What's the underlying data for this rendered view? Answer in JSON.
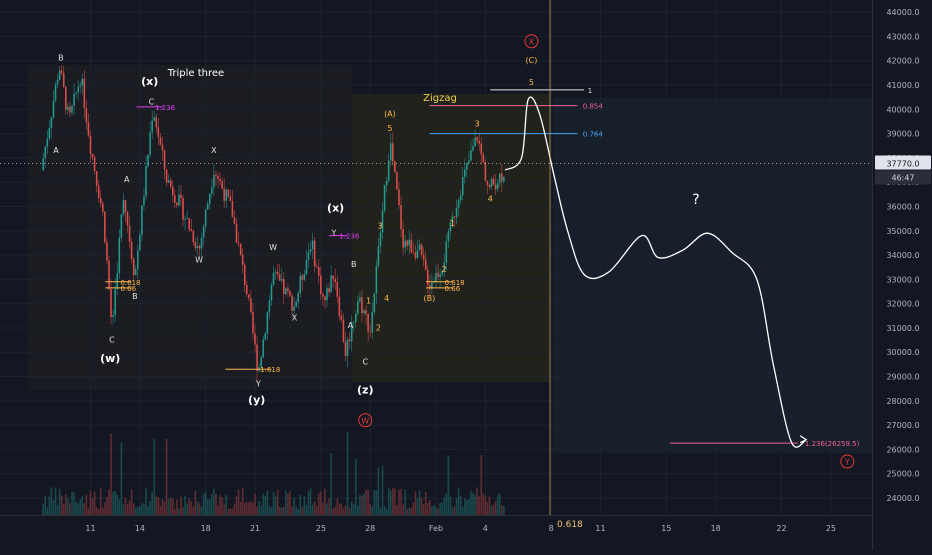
{
  "chart_data": {
    "type": "candlestick",
    "title": "",
    "price_axis": {
      "ticks": [
        "44000.0",
        "43000.0",
        "42000.0",
        "41000.0",
        "40000.0",
        "39000.0",
        "38000.0",
        "37000.0",
        "36000.0",
        "35000.0",
        "34000.0",
        "33000.0",
        "32000.0",
        "31000.0",
        "30000.0",
        "29000.0",
        "28000.0",
        "27000.0",
        "26000.0",
        "25000.0",
        "24000.0"
      ],
      "tick_values": [
        44000,
        43000,
        42000,
        41000,
        40000,
        39000,
        38000,
        37000,
        36000,
        35000,
        34000,
        33000,
        32000,
        31000,
        30000,
        29000,
        28000,
        27000,
        26000,
        25000,
        24000
      ],
      "current_price": "37770.0",
      "countdown": "46:47",
      "ylim": [
        23300,
        44500
      ]
    },
    "time_axis": {
      "labels": [
        "11",
        "14",
        "18",
        "21",
        "25",
        "28",
        "Feb",
        "4",
        "8",
        "11",
        "15",
        "18",
        "22",
        "25"
      ],
      "label_days": [
        3,
        6,
        10,
        13,
        17,
        20,
        24,
        27,
        31,
        34,
        38,
        41,
        45,
        48
      ],
      "xlim": [
        -2.5,
        50.5
      ],
      "footer_left": "0.618",
      "footer_right": "1"
    },
    "regions": {
      "triple_three": "Triple three",
      "zigzag": "Zigzag",
      "forecast_question": "?"
    },
    "price_path": [
      {
        "d": 0,
        "p": 37500
      },
      {
        "d": 0.6,
        "p": 39800
      },
      {
        "d": 1.1,
        "p": 41800
      },
      {
        "d": 1.7,
        "p": 39500
      },
      {
        "d": 2.4,
        "p": 41400
      },
      {
        "d": 3.0,
        "p": 38500
      },
      {
        "d": 3.8,
        "p": 35500
      },
      {
        "d": 4.3,
        "p": 31000
      },
      {
        "d": 5.0,
        "p": 36500
      },
      {
        "d": 5.7,
        "p": 33100
      },
      {
        "d": 6.8,
        "p": 40100
      },
      {
        "d": 7.6,
        "p": 37200
      },
      {
        "d": 8.5,
        "p": 36000
      },
      {
        "d": 9.6,
        "p": 34200
      },
      {
        "d": 10.5,
        "p": 37600
      },
      {
        "d": 11.6,
        "p": 35800
      },
      {
        "d": 12.5,
        "p": 32500
      },
      {
        "d": 13.2,
        "p": 29200
      },
      {
        "d": 14.1,
        "p": 33200
      },
      {
        "d": 15.4,
        "p": 31900
      },
      {
        "d": 16.4,
        "p": 34600
      },
      {
        "d": 17.2,
        "p": 32000
      },
      {
        "d": 17.8,
        "p": 33400
      },
      {
        "d": 18.5,
        "p": 30000
      },
      {
        "d": 19.3,
        "p": 32300
      },
      {
        "d": 20.0,
        "p": 30900
      },
      {
        "d": 20.6,
        "p": 34800
      },
      {
        "d": 21.2,
        "p": 38700
      },
      {
        "d": 22.0,
        "p": 34600
      },
      {
        "d": 23.0,
        "p": 34100
      },
      {
        "d": 23.6,
        "p": 32800
      },
      {
        "d": 24.4,
        "p": 33600
      },
      {
        "d": 25.4,
        "p": 36600
      },
      {
        "d": 26.5,
        "p": 38900
      },
      {
        "d": 27.2,
        "p": 36700
      },
      {
        "d": 28.2,
        "p": 37500
      }
    ],
    "forecast_path": [
      {
        "d": 28.2,
        "p": 37500
      },
      {
        "d": 29.2,
        "p": 38000
      },
      {
        "d": 29.6,
        "p": 40400
      },
      {
        "d": 30.3,
        "p": 39800
      },
      {
        "d": 31.2,
        "p": 37200
      },
      {
        "d": 32.0,
        "p": 35000
      },
      {
        "d": 33.0,
        "p": 33200
      },
      {
        "d": 34.5,
        "p": 33300
      },
      {
        "d": 36.5,
        "p": 34800
      },
      {
        "d": 37.5,
        "p": 33900
      },
      {
        "d": 39.0,
        "p": 34200
      },
      {
        "d": 40.5,
        "p": 34900
      },
      {
        "d": 42.0,
        "p": 34100
      },
      {
        "d": 43.5,
        "p": 33000
      },
      {
        "d": 44.5,
        "p": 29500
      },
      {
        "d": 45.6,
        "p": 26300
      },
      {
        "d": 46.5,
        "p": 26400
      }
    ],
    "fib_levels": [
      {
        "text": "1.236",
        "d": 6.8,
        "p": 40100,
        "x0": 5.8,
        "x1": 7.4,
        "color": "#e040fb"
      },
      {
        "text": "0.618",
        "d": 4.7,
        "p": 32900,
        "x0": 3.9,
        "x1": 5.5,
        "color": "#ffb74d"
      },
      {
        "text": "0.66",
        "d": 4.7,
        "p": 32650,
        "x0": 3.9,
        "x1": 5.5,
        "color": "#ffb74d"
      },
      {
        "text": "1.618",
        "d": 13.2,
        "p": 29300,
        "x0": 11.2,
        "x1": 14.0,
        "color": "#ffb74d"
      },
      {
        "text": "1.236",
        "d": 18.0,
        "p": 34800,
        "x0": 17.5,
        "x1": 18.6,
        "color": "#e040fb"
      },
      {
        "text": "0.618",
        "d": 24.4,
        "p": 32900,
        "x0": 23.4,
        "x1": 25.0,
        "color": "#ffb74d"
      },
      {
        "text": "0.66",
        "d": 24.4,
        "p": 32650,
        "x0": 23.4,
        "x1": 25.0,
        "color": "#ffb74d"
      },
      {
        "text": "1",
        "d": 33.1,
        "p": 40800,
        "x0": 27.3,
        "x1": 33.0,
        "color": "#e0e0e0"
      },
      {
        "text": "0.854",
        "d": 32.8,
        "p": 40150,
        "x0": 23.6,
        "x1": 32.6,
        "color": "#f06292"
      },
      {
        "text": "0.764",
        "d": 32.8,
        "p": 39000,
        "x0": 23.6,
        "x1": 32.6,
        "color": "#42a5f5"
      },
      {
        "text": "1.236(26259.5)",
        "d": 46.3,
        "p": 26260,
        "x0": 38.2,
        "x1": 46.0,
        "color": "#f06292"
      }
    ],
    "wave_labels": [
      {
        "text": "B",
        "d": 1.2,
        "p": 42000,
        "color": "#e0e0e0",
        "size": 8
      },
      {
        "text": "A",
        "d": 0.9,
        "p": 38200,
        "color": "#e0e0e0",
        "size": 8
      },
      {
        "text": "A",
        "d": 5.2,
        "p": 37000,
        "color": "#e0e0e0",
        "size": 8
      },
      {
        "text": "B",
        "d": 5.7,
        "p": 32200,
        "color": "#e0e0e0",
        "size": 8
      },
      {
        "text": "C",
        "d": 4.3,
        "p": 30400,
        "color": "#e0e0e0",
        "size": 8
      },
      {
        "text": "(w)",
        "d": 4.2,
        "p": 29600,
        "color": "#ffffff",
        "size": 11
      },
      {
        "text": "(x)",
        "d": 6.6,
        "p": 41000,
        "color": "#ffffff",
        "size": 11
      },
      {
        "text": "C",
        "d": 6.7,
        "p": 40200,
        "color": "#e0e0e0",
        "size": 8
      },
      {
        "text": "X",
        "d": 10.5,
        "p": 38200,
        "color": "#e0e0e0",
        "size": 8
      },
      {
        "text": "W",
        "d": 9.6,
        "p": 33700,
        "color": "#e0e0e0",
        "size": 8
      },
      {
        "text": "W",
        "d": 14.1,
        "p": 34200,
        "color": "#e0e0e0",
        "size": 8
      },
      {
        "text": "X",
        "d": 15.4,
        "p": 31300,
        "color": "#e0e0e0",
        "size": 8
      },
      {
        "text": "Y",
        "d": 13.2,
        "p": 28600,
        "color": "#e0e0e0",
        "size": 8
      },
      {
        "text": "(y)",
        "d": 13.1,
        "p": 27900,
        "color": "#ffffff",
        "size": 11
      },
      {
        "text": "(x)",
        "d": 17.9,
        "p": 35800,
        "color": "#ffffff",
        "size": 11
      },
      {
        "text": "Y",
        "d": 17.8,
        "p": 34800,
        "color": "#e0e0e0",
        "size": 8
      },
      {
        "text": "B",
        "d": 19.0,
        "p": 33500,
        "color": "#e0e0e0",
        "size": 8
      },
      {
        "text": "A",
        "d": 18.8,
        "p": 31000,
        "color": "#e0e0e0",
        "size": 8
      },
      {
        "text": "C",
        "d": 19.7,
        "p": 29500,
        "color": "#e0e0e0",
        "size": 8
      },
      {
        "text": "(z)",
        "d": 19.7,
        "p": 28300,
        "color": "#ffffff",
        "size": 11
      },
      {
        "text": "1",
        "d": 19.9,
        "p": 32000,
        "color": "#ffb74d",
        "size": 8
      },
      {
        "text": "2",
        "d": 20.5,
        "p": 30900,
        "color": "#ffb74d",
        "size": 8
      },
      {
        "text": "3",
        "d": 20.6,
        "p": 35100,
        "color": "#ffb74d",
        "size": 8
      },
      {
        "text": "4",
        "d": 21.0,
        "p": 32100,
        "color": "#ffb74d",
        "size": 8
      },
      {
        "text": "5",
        "d": 21.2,
        "p": 39100,
        "color": "#ffb74d",
        "size": 8
      },
      {
        "text": "(A)",
        "d": 21.2,
        "p": 39700,
        "color": "#ffb74d",
        "size": 8
      },
      {
        "text": "1",
        "d": 25.0,
        "p": 35200,
        "color": "#ffb74d",
        "size": 8
      },
      {
        "text": "2",
        "d": 24.5,
        "p": 33300,
        "color": "#ffb74d",
        "size": 8
      },
      {
        "text": "(B)",
        "d": 23.6,
        "p": 32100,
        "color": "#ffb74d",
        "size": 8
      },
      {
        "text": "3",
        "d": 26.5,
        "p": 39300,
        "color": "#ffb74d",
        "size": 8
      },
      {
        "text": "4",
        "d": 27.3,
        "p": 36200,
        "color": "#ffb74d",
        "size": 8
      },
      {
        "text": "5",
        "d": 29.8,
        "p": 41000,
        "color": "#ffb74d",
        "size": 8
      },
      {
        "text": "(C)",
        "d": 29.8,
        "p": 41900,
        "color": "#ffb74d",
        "size": 8
      }
    ],
    "circle_labels": [
      {
        "text": "X",
        "d": 29.8,
        "p": 42800,
        "color": "#e53935"
      },
      {
        "text": "W",
        "d": 19.7,
        "p": 27200,
        "color": "#e53935"
      },
      {
        "text": "Y",
        "d": 49.0,
        "p": 25500,
        "color": "#e53935"
      }
    ],
    "volume": {
      "note": "",
      "last_day": 28.2
    }
  }
}
